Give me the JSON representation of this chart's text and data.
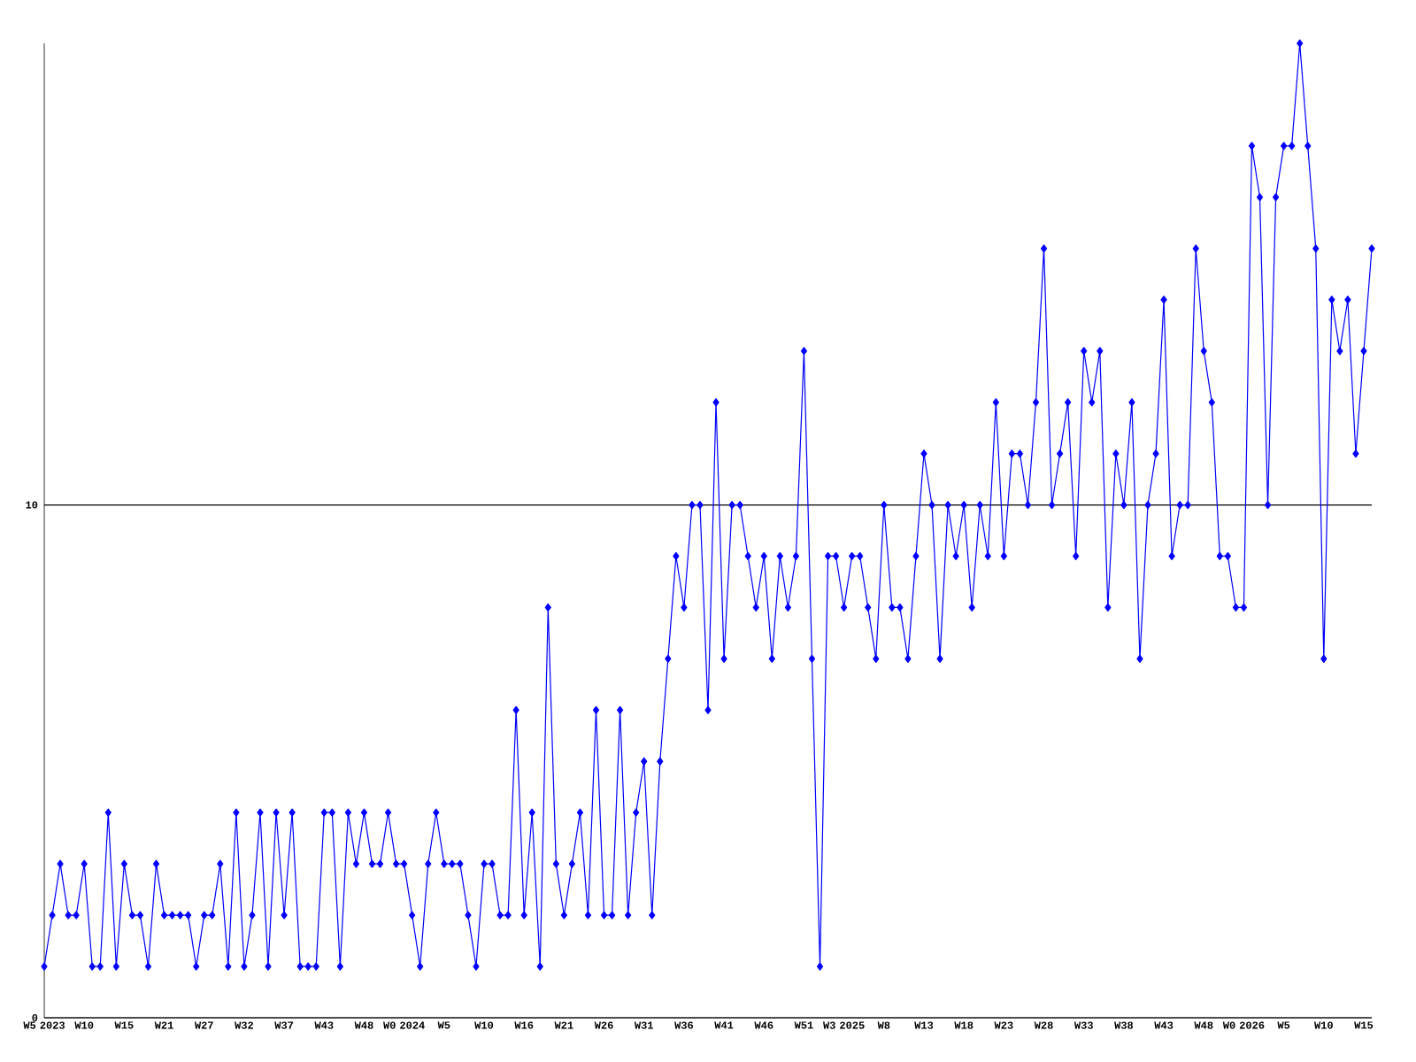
{
  "chart_data": {
    "type": "line",
    "categories": [
      "W5 2023",
      null,
      null,
      null,
      null,
      "W10",
      null,
      null,
      null,
      null,
      "W15",
      null,
      null,
      null,
      null,
      "W21",
      null,
      null,
      null,
      null,
      "W27",
      null,
      null,
      null,
      null,
      "W32",
      null,
      null,
      null,
      null,
      "W37",
      null,
      null,
      null,
      null,
      "W43",
      null,
      null,
      null,
      null,
      "W48",
      null,
      null,
      null,
      null,
      "W0 2024",
      null,
      null,
      null,
      null,
      "W5",
      null,
      null,
      null,
      null,
      "W10",
      null,
      null,
      null,
      null,
      "W16",
      null,
      null,
      null,
      null,
      "W21",
      null,
      null,
      null,
      null,
      "W26",
      null,
      null,
      null,
      null,
      "W31",
      null,
      null,
      null,
      null,
      "W36",
      null,
      null,
      null,
      null,
      "W41",
      null,
      null,
      null,
      null,
      "W46",
      null,
      null,
      null,
      null,
      "W51",
      null,
      null,
      null,
      null,
      "W3 2025",
      null,
      null,
      null,
      null,
      "W8",
      null,
      null,
      null,
      null,
      "W13",
      null,
      null,
      null,
      null,
      "W18",
      null,
      null,
      null,
      null,
      "W23",
      null,
      null,
      null,
      null,
      "W28",
      null,
      null,
      null,
      null,
      "W33",
      null,
      null,
      null,
      null,
      "W38",
      null,
      null,
      null,
      null,
      "W43",
      null,
      null,
      null,
      null,
      "W48",
      null,
      null,
      null,
      null,
      "W0 2026",
      null,
      null,
      null,
      null,
      "W5",
      null,
      null,
      null,
      null,
      "W10",
      null,
      null,
      null,
      null,
      "W15",
      null
    ],
    "series": [
      {
        "color": "#0000ff",
        "values": [
          1,
          2,
          3,
          2,
          2,
          3,
          1,
          1,
          4,
          1,
          3,
          2,
          2,
          1,
          3,
          2,
          2,
          2,
          2,
          1,
          2,
          2,
          3,
          1,
          4,
          1,
          2,
          4,
          1,
          4,
          2,
          4,
          1,
          1,
          1,
          4,
          4,
          1,
          4,
          3,
          4,
          3,
          3,
          4,
          3,
          3,
          2,
          1,
          3,
          4,
          3,
          3,
          3,
          2,
          1,
          3,
          3,
          2,
          2,
          6,
          2,
          4,
          1,
          8,
          3,
          2,
          3,
          4,
          2,
          6,
          2,
          2,
          6,
          2,
          4,
          5,
          2,
          5,
          7,
          9,
          8,
          10,
          10,
          6,
          12,
          7,
          10,
          10,
          9,
          8,
          9,
          7,
          9,
          8,
          9,
          13,
          7,
          1,
          9,
          9,
          8,
          9,
          9,
          8,
          7,
          10,
          8,
          8,
          7,
          9,
          11,
          10,
          7,
          10,
          9,
          10,
          8,
          10,
          9,
          12,
          9,
          11,
          11,
          10,
          12,
          15,
          10,
          11,
          12,
          9,
          13,
          12,
          13,
          8,
          11,
          10,
          12,
          7,
          10,
          11,
          14,
          9,
          10,
          10,
          15,
          13,
          12,
          9,
          9,
          8,
          8,
          17,
          16,
          10,
          16,
          17,
          17,
          19,
          17,
          15,
          7,
          14,
          13,
          14,
          11,
          13,
          15
        ]
      }
    ],
    "ylim": [
      0,
      19
    ],
    "yticks": [
      0,
      10
    ],
    "grid": "y",
    "marker": "diamond",
    "line_style": "solid"
  }
}
